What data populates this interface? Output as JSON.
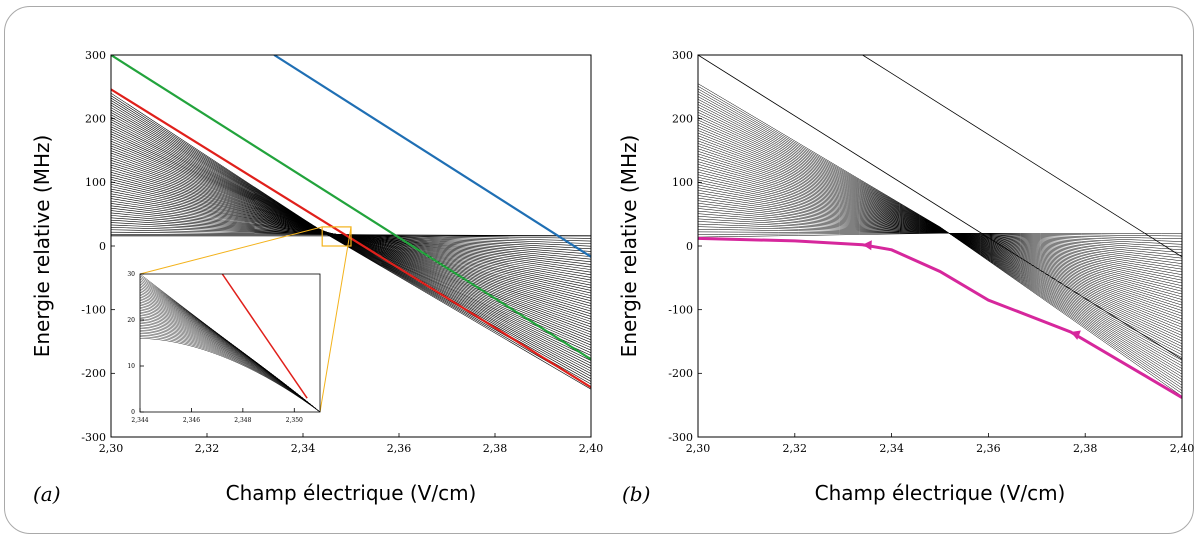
{
  "chart_data": [
    {
      "panel": "(a)",
      "type": "line",
      "xlabel": "Champ électrique (V/cm)",
      "ylabel": "Energie  relative (MHz)",
      "xlim": [
        2.3,
        2.4
      ],
      "ylim": [
        -300,
        300
      ],
      "xticks": [
        "2,30",
        "2,32",
        "2,34",
        "2,36",
        "2,38",
        "2,40"
      ],
      "yticks": [
        "300",
        "200",
        "100",
        "0",
        "-100",
        "-200",
        "-300"
      ],
      "grid": false,
      "series": [
        {
          "label_color": "#1f6fb4",
          "x": [
            2.334,
            2.4
          ],
          "y": [
            300,
            -17
          ]
        },
        {
          "label_color": "#22a33c",
          "x": [
            2.3,
            2.4
          ],
          "y": [
            300,
            -178
          ]
        },
        {
          "label_color": "#e0201b",
          "x": [
            2.3,
            2.4
          ],
          "y": [
            246,
            -222
          ]
        }
      ],
      "black_fan": {
        "line_count": 60,
        "left_y_range": [
          18,
          240
        ],
        "plateau_y": 16,
        "crossing_x": 2.345,
        "right_y_range": [
          16,
          -225
        ]
      },
      "zoom_box": {
        "x": [
          2.344,
          2.35
        ],
        "y": [
          0,
          30
        ],
        "color": "#f3b21b"
      },
      "inset": {
        "xlim": [
          2.344,
          2.351
        ],
        "ylim": [
          0,
          30
        ],
        "xticks": [
          "2,344",
          "2,346",
          "2,348",
          "2,350"
        ],
        "yticks": [
          "30",
          "20",
          "10",
          "0"
        ],
        "red_line": {
          "x": [
            2.3472,
            2.3505
          ],
          "y": [
            30,
            3
          ]
        }
      }
    },
    {
      "panel": "(b)",
      "type": "line",
      "xlabel": "Champ électrique (V/cm)",
      "ylabel": "Energie  relative (MHz)",
      "xlim": [
        2.3,
        2.4
      ],
      "ylim": [
        -300,
        300
      ],
      "xticks": [
        "2,30",
        "2,32",
        "2,34",
        "2,36",
        "2,38",
        "2,40"
      ],
      "yticks": [
        "300",
        "200",
        "100",
        "0",
        "-100",
        "-200",
        "-300"
      ],
      "grid": false,
      "thin_lines": [
        {
          "x": [
            2.3,
            2.4
          ],
          "y": [
            300,
            -178
          ]
        },
        {
          "x": [
            2.334,
            2.4
          ],
          "y": [
            300,
            -17
          ]
        }
      ],
      "fan": {
        "line_count": 60,
        "left_y_range": [
          14,
          255
        ],
        "right_y_range": [
          20,
          -236
        ]
      },
      "highlight": {
        "color": "#d6279c",
        "x": [
          2.3,
          2.32,
          2.334,
          2.34,
          2.35,
          2.36,
          2.377,
          2.4
        ],
        "y": [
          12,
          8,
          2,
          -6,
          -40,
          -85,
          -135,
          -238
        ],
        "arrows_at_x": [
          2.334,
          2.377
        ]
      }
    }
  ]
}
